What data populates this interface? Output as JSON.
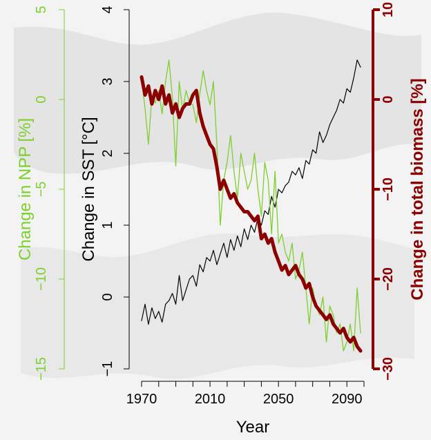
{
  "chart_data": {
    "type": "line",
    "xlabel": "Year",
    "x_ticks": [
      1970,
      2010,
      2050,
      2090
    ],
    "xlim": [
      1970,
      2100
    ],
    "axes": {
      "npp": {
        "label": "Change in NPP [%]",
        "ticks": [
          5,
          0,
          -5,
          -10,
          -15
        ],
        "ylim": [
          -15,
          5
        ],
        "color": "#7ccf2d"
      },
      "sst": {
        "label": "Change in SST [°C]",
        "ticks": [
          4,
          3,
          2,
          1,
          0,
          -1
        ],
        "ylim": [
          -1,
          4
        ],
        "color": "#000000"
      },
      "biomass": {
        "label": "Change in total biomass [%]",
        "ticks": [
          10,
          0,
          -10,
          -20,
          -30
        ],
        "ylim": [
          -30,
          10
        ],
        "color": "#8b0000"
      }
    },
    "series": [
      {
        "axis": "sst",
        "color": "#000000",
        "x": [
          1970,
          1972,
          1974,
          1976,
          1978,
          1980,
          1982,
          1984,
          1986,
          1988,
          1990,
          1992,
          1994,
          1996,
          1998,
          2000,
          2002,
          2004,
          2006,
          2008,
          2010,
          2012,
          2014,
          2016,
          2018,
          2020,
          2022,
          2024,
          2026,
          2028,
          2030,
          2032,
          2034,
          2036,
          2038,
          2040,
          2042,
          2044,
          2046,
          2048,
          2050,
          2052,
          2054,
          2056,
          2058,
          2060,
          2062,
          2064,
          2066,
          2068,
          2070,
          2072,
          2074,
          2076,
          2078,
          2080,
          2082,
          2084,
          2086,
          2088,
          2090,
          2092,
          2094,
          2096,
          2098
        ],
        "y": [
          -0.33,
          -0.1,
          -0.38,
          -0.15,
          -0.3,
          -0.2,
          -0.35,
          -0.1,
          -0.05,
          0.05,
          -0.1,
          0.3,
          -0.05,
          0.1,
          0.25,
          0.3,
          0.15,
          0.45,
          0.35,
          0.55,
          0.5,
          0.65,
          0.45,
          0.6,
          0.75,
          0.55,
          0.8,
          0.65,
          0.85,
          0.7,
          0.95,
          0.8,
          1.0,
          0.9,
          1.1,
          1.0,
          1.2,
          1.15,
          1.4,
          1.25,
          1.5,
          1.45,
          1.55,
          1.6,
          1.75,
          1.7,
          1.8,
          1.65,
          1.9,
          1.85,
          2.05,
          2.0,
          2.3,
          2.15,
          2.25,
          2.4,
          2.5,
          2.6,
          2.75,
          2.7,
          2.9,
          2.85,
          3.05,
          3.3,
          3.2
        ]
      },
      {
        "axis": "npp",
        "color": "#7ccf2d",
        "x": [
          1970,
          1972,
          1974,
          1976,
          1978,
          1980,
          1982,
          1984,
          1986,
          1988,
          1990,
          1992,
          1994,
          1996,
          1998,
          2000,
          2002,
          2004,
          2006,
          2008,
          2010,
          2012,
          2014,
          2016,
          2018,
          2020,
          2022,
          2024,
          2026,
          2028,
          2030,
          2032,
          2034,
          2036,
          2038,
          2040,
          2042,
          2044,
          2046,
          2048,
          2050,
          2052,
          2054,
          2056,
          2058,
          2060,
          2062,
          2064,
          2066,
          2068,
          2070,
          2072,
          2074,
          2076,
          2078,
          2080,
          2082,
          2084,
          2086,
          2088,
          2090,
          2092,
          2094,
          2096,
          2098
        ],
        "y": [
          1.1,
          -0.5,
          -2.5,
          0.2,
          -0.2,
          0.5,
          -0.8,
          1.0,
          2.2,
          0.1,
          -3.7,
          1.0,
          -0.6,
          0.5,
          -0.2,
          -0.3,
          -1.3,
          0.3,
          1.6,
          0.5,
          -0.3,
          1.0,
          -2.5,
          -7.0,
          -4.5,
          -3.5,
          -2.0,
          -4.0,
          -5.5,
          -3.0,
          -4.0,
          -5.0,
          -4.5,
          -3.0,
          -5.0,
          -6.5,
          -3.5,
          -4.5,
          -7.5,
          -4.0,
          -8.0,
          -7.5,
          -8.5,
          -9.0,
          -8.0,
          -10.0,
          -9.5,
          -8.5,
          -10.5,
          -12.5,
          -10.5,
          -11.5,
          -12.0,
          -11.0,
          -13.5,
          -11.5,
          -12.0,
          -13.0,
          -12.5,
          -14.0,
          -13.5,
          -12.5,
          -14.0,
          -10.5,
          -13.0
        ]
      },
      {
        "axis": "biomass",
        "color": "#8b0000",
        "x": [
          1970,
          1972,
          1974,
          1976,
          1978,
          1980,
          1982,
          1984,
          1986,
          1988,
          1990,
          1992,
          1994,
          1996,
          1998,
          2000,
          2002,
          2004,
          2006,
          2008,
          2010,
          2012,
          2014,
          2016,
          2018,
          2020,
          2022,
          2024,
          2026,
          2028,
          2030,
          2032,
          2034,
          2036,
          2038,
          2040,
          2042,
          2044,
          2046,
          2048,
          2050,
          2052,
          2054,
          2056,
          2058,
          2060,
          2062,
          2064,
          2066,
          2068,
          2070,
          2072,
          2074,
          2076,
          2078,
          2080,
          2082,
          2084,
          2086,
          2088,
          2090,
          2092,
          2094,
          2096,
          2098
        ],
        "y": [
          2.5,
          0.5,
          1.5,
          -0.5,
          1.0,
          0.0,
          1.5,
          -0.5,
          0.5,
          -1.5,
          -0.5,
          -2.0,
          -1.0,
          -0.5,
          -0.5,
          0.5,
          1.0,
          -1.5,
          -3.0,
          -4.0,
          -5.0,
          -5.5,
          -7.5,
          -10.0,
          -9.0,
          -10.0,
          -11.0,
          -10.5,
          -11.5,
          -12.0,
          -12.5,
          -12.5,
          -13.0,
          -13.5,
          -13.0,
          -15.5,
          -15.0,
          -16.0,
          -15.5,
          -17.0,
          -18.0,
          -19.0,
          -18.5,
          -19.5,
          -19.0,
          -18.5,
          -19.5,
          -20.0,
          -21.0,
          -20.5,
          -22.0,
          -23.0,
          -23.5,
          -24.0,
          -24.5,
          -24.0,
          -25.0,
          -25.5,
          -26.0,
          -25.5,
          -26.5,
          -27.0,
          -26.5,
          -27.5,
          -28.0
        ]
      }
    ]
  }
}
